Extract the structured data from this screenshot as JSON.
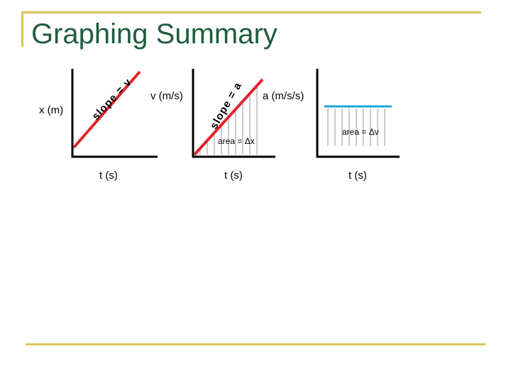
{
  "title": "Graphing Summary",
  "colors": {
    "title": "#1f5c3f",
    "rule": "#d9c55a",
    "line": "#e0242b",
    "accel": "#1ea7d8",
    "axis": "#000000",
    "hatch": "#8a9a9a"
  },
  "graphs": [
    {
      "ylabel": "x (m)",
      "xlabel": "t (s)",
      "slope_text": "slope = v"
    },
    {
      "ylabel": "v (m/s)",
      "xlabel": "t (s)",
      "slope_text": "slope = a",
      "area_text": "area = Δx"
    },
    {
      "ylabel": "a (m/s/s)",
      "xlabel": "t (s)",
      "area_text": "area = Δv"
    }
  ]
}
